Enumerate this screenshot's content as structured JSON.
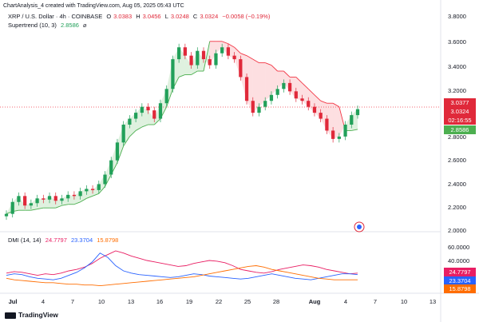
{
  "header": {
    "byline": "ChartAnalysis_4 created with TradingView.com, Aug 05, 2025 05:43 UTC",
    "symbol": "XRP / U.S. Dollar · 4h · COINBASE",
    "ohlc": {
      "o_label": "O",
      "o": "3.0383",
      "h_label": "H",
      "h": "3.0456",
      "l_label": "L",
      "l": "3.0248",
      "c_label": "C",
      "c": "3.0324",
      "change": "−0.0058 (−0.19%)"
    },
    "supertrend_label": "Supertrend (10, 3)",
    "supertrend_value": "2.8586",
    "supertrend_icon": "slash-icon"
  },
  "dmi": {
    "label": "DMI (14, 14)",
    "v1": "24.7797",
    "v2": "23.3704",
    "v3": "15.8798"
  },
  "price_tags": {
    "high": "3.0377",
    "last": "3.0324",
    "countdown": "02:16:55",
    "supertrend": "2.8586"
  },
  "dmi_tags": {
    "pink": "24.7797",
    "blue": "23.3704",
    "orange": "15.8798"
  },
  "y_axis": [
    "3.8000",
    "3.6000",
    "3.4000",
    "3.2000",
    "2.8000",
    "2.6000",
    "2.4000",
    "2.2000",
    "2.0000"
  ],
  "dmi_axis": [
    "60.0000",
    "40.0000"
  ],
  "x_axis": [
    "Jul",
    "4",
    "7",
    "10",
    "13",
    "16",
    "19",
    "22",
    "25",
    "28",
    "Aug",
    "4",
    "7",
    "10",
    "13"
  ],
  "footer": {
    "brand": "TradingView"
  },
  "colors": {
    "up": "#22a05a",
    "down": "#e0293a",
    "pink": "#e91e63",
    "blue": "#2962ff",
    "orange": "#ff6d00",
    "supertrend_green": "#4caf50",
    "supertrend_red": "#f23645"
  },
  "chart_data": {
    "type": "line",
    "ylim": [
      2.0,
      3.8
    ],
    "price_close": [
      2.15,
      2.25,
      2.3,
      2.22,
      2.24,
      2.28,
      2.27,
      2.3,
      2.26,
      2.28,
      2.31,
      2.3,
      2.34,
      2.36,
      2.35,
      2.4,
      2.48,
      2.6,
      2.75,
      2.9,
      2.95,
      3.0,
      3.05,
      3.02,
      2.95,
      3.08,
      3.2,
      3.45,
      3.55,
      3.48,
      3.4,
      3.52,
      3.45,
      3.4,
      3.5,
      3.55,
      3.48,
      3.45,
      3.3,
      3.1,
      3.0,
      3.05,
      3.1,
      3.15,
      3.2,
      3.25,
      3.18,
      3.12,
      3.1,
      3.05,
      3.0,
      2.95,
      2.85,
      2.78,
      2.8,
      2.9,
      2.98,
      3.03
    ],
    "supertrend": [
      2.15,
      2.17,
      2.18,
      2.18,
      2.18,
      2.19,
      2.2,
      2.2,
      2.2,
      2.22,
      2.23,
      2.23,
      2.25,
      2.28,
      2.3,
      2.32,
      2.38,
      2.48,
      2.58,
      2.72,
      2.8,
      2.85,
      2.88,
      2.9,
      2.9,
      2.95,
      3.05,
      3.2,
      3.3,
      3.32,
      3.32,
      3.35,
      3.35,
      3.6,
      3.6,
      3.6,
      3.58,
      3.55,
      3.5,
      3.48,
      3.45,
      3.42,
      3.42,
      3.4,
      3.35,
      3.35,
      3.3,
      3.3,
      3.25,
      3.2,
      3.15,
      3.1,
      3.08,
      3.08,
      3.05,
      2.85,
      2.85,
      2.86
    ],
    "dmi_pink": [
      25,
      27,
      26,
      24,
      22,
      24,
      23,
      25,
      28,
      30,
      33,
      38,
      45,
      50,
      55,
      52,
      48,
      45,
      42,
      40,
      38,
      36,
      34,
      35,
      38,
      40,
      42,
      41,
      39,
      35,
      30,
      28,
      26,
      25,
      27,
      30,
      32,
      34,
      36,
      35,
      33,
      30,
      28,
      26,
      24,
      25
    ],
    "dmi_blue": [
      22,
      24,
      23,
      20,
      18,
      17,
      16,
      18,
      22,
      26,
      32,
      40,
      52,
      46,
      35,
      28,
      25,
      23,
      22,
      21,
      20,
      19,
      20,
      22,
      24,
      23,
      21,
      20,
      19,
      18,
      17,
      18,
      20,
      22,
      24,
      22,
      20,
      18,
      17,
      16,
      18,
      20,
      22,
      24,
      24,
      23
    ],
    "dmi_orange": [
      18,
      16,
      15,
      14,
      13,
      12,
      12,
      11,
      10,
      10,
      9,
      9,
      8,
      9,
      10,
      11,
      12,
      13,
      14,
      15,
      16,
      17,
      18,
      19,
      20,
      22,
      24,
      26,
      28,
      30,
      32,
      34,
      35,
      33,
      30,
      28,
      26,
      24,
      22,
      20,
      18,
      17,
      16,
      16,
      16,
      16
    ]
  }
}
